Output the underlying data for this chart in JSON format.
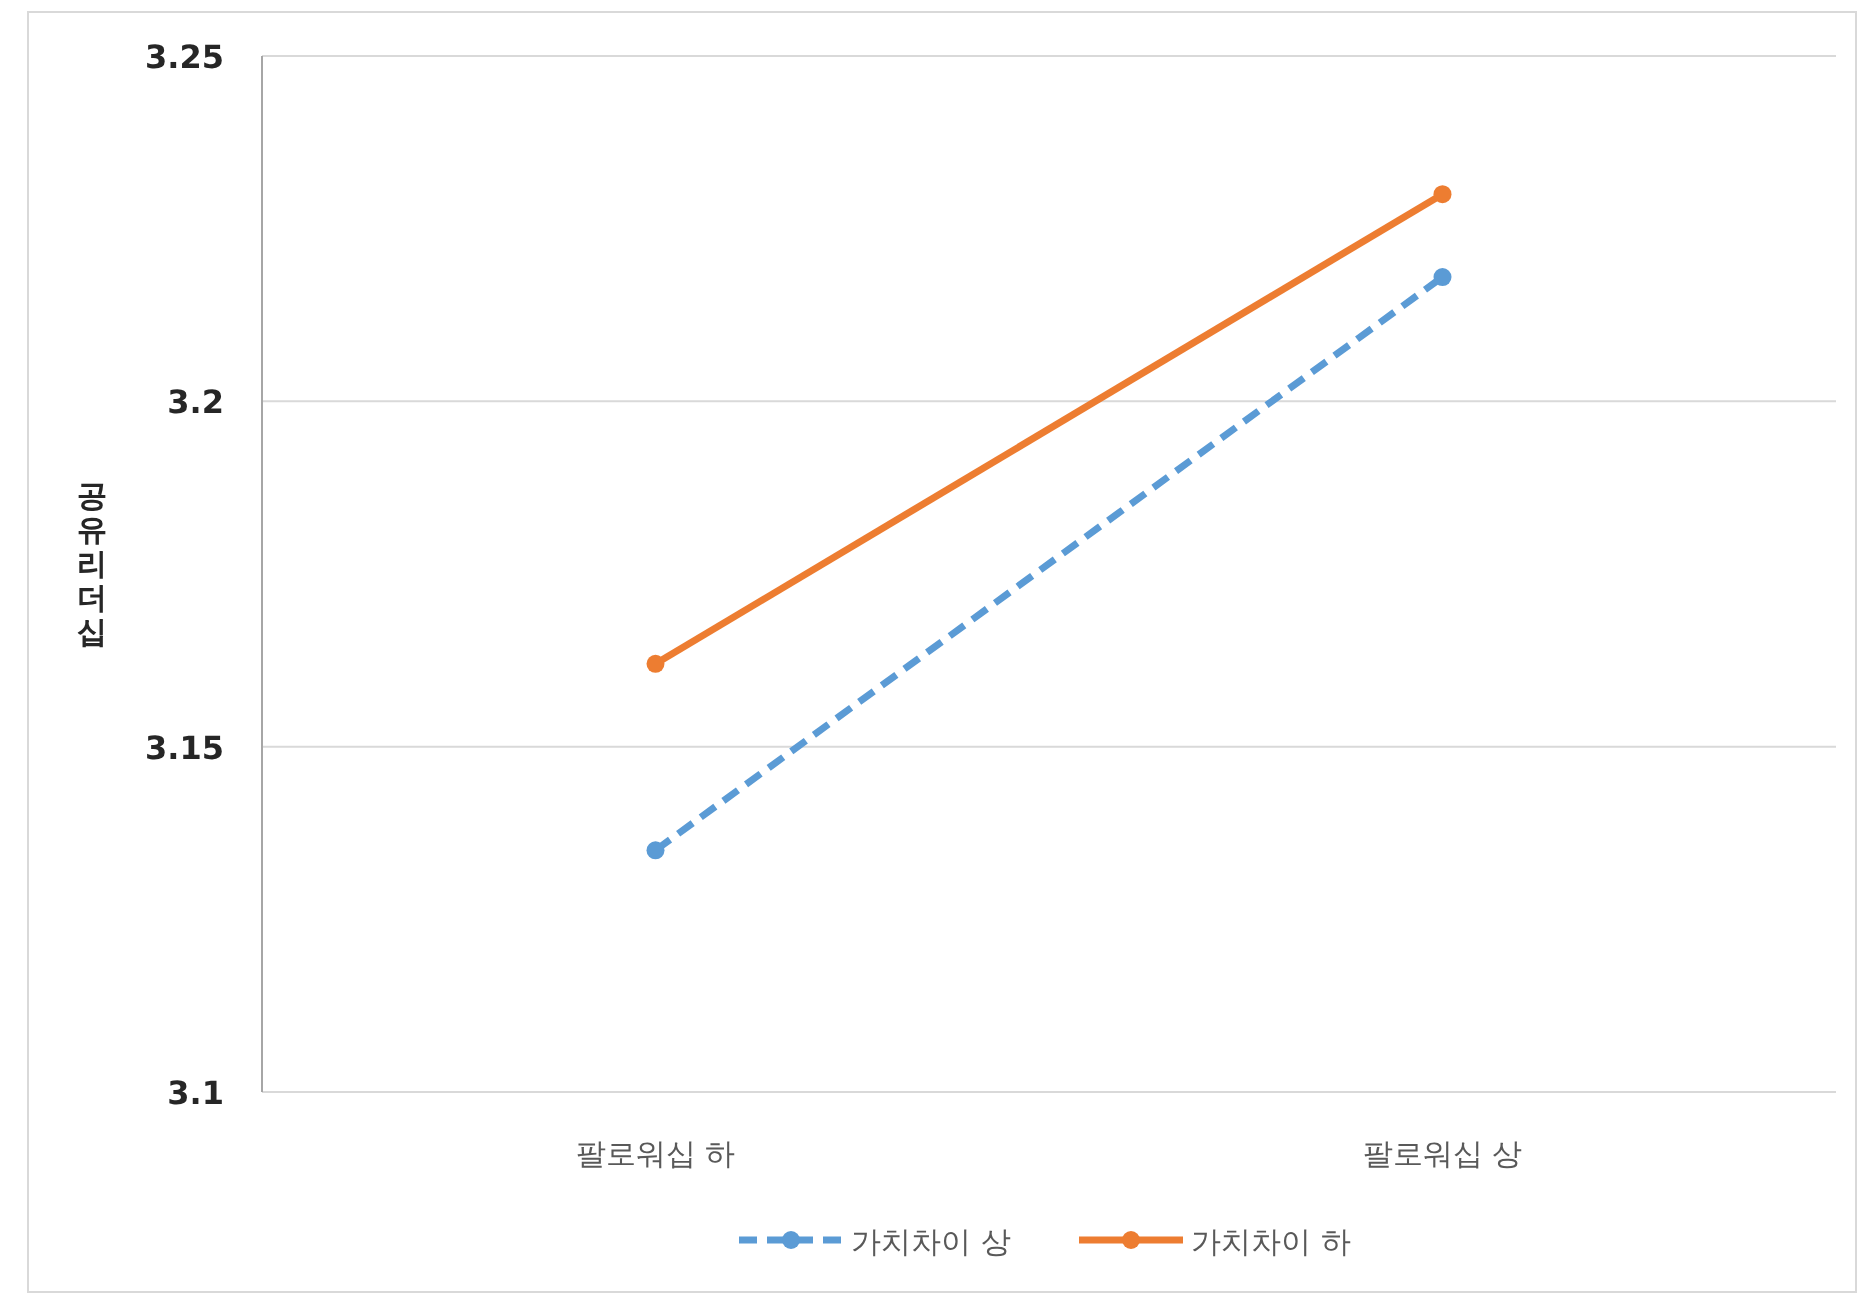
{
  "chart_data": {
    "type": "line",
    "ylabel": "공유리더십",
    "categories": [
      "팔로워십 하",
      "팔로워십 상"
    ],
    "series": [
      {
        "name": "가치차이 상",
        "color": "#5b9bd5",
        "values": [
          3.135,
          3.218
        ],
        "line_style": "dashed",
        "marker": "circle"
      },
      {
        "name": "가치차이 하",
        "color": "#ed7d31",
        "values": [
          3.162,
          3.23
        ],
        "line_style": "solid",
        "marker": "circle"
      }
    ],
    "ylim": [
      3.1,
      3.25
    ],
    "yticks": [
      3.1,
      3.15,
      3.2,
      3.25
    ],
    "grid": "y",
    "legend": "bottom"
  }
}
